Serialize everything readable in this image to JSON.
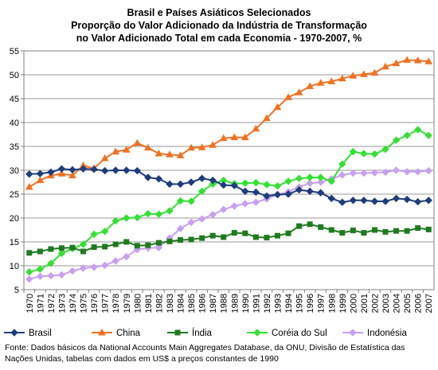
{
  "title_lines": [
    "Brasil e Países Asiáticos Selecionados",
    "Proporção do Valor Adicionado da Indústria de Transformação",
    "no Valor Adicionado Total em cada Economia - 1970-2007, %"
  ],
  "source_note": "Fonte: Dados básicos da National Accounts Main Aggregates Database, da ONU, Divisão de Estatística das Nações Unidas, tabelas com dados em US$ a preços constantes de 1990",
  "chart_data": {
    "type": "line",
    "title": "Brasil e Países Asiáticos Selecionados - Proporção do Valor Adicionado da Indústria de Transformação no Valor Adicionado Total em cada Economia - 1970-2007, %",
    "xlabel": "",
    "ylabel": "",
    "ylim": [
      5,
      55
    ],
    "yticks": [
      5,
      10,
      15,
      20,
      25,
      30,
      35,
      40,
      45,
      50,
      55
    ],
    "grid": true,
    "legend_position": "bottom",
    "categories": [
      "1970",
      "1971",
      "1972",
      "1973",
      "1974",
      "1975",
      "1976",
      "1977",
      "1978",
      "1979",
      "1980",
      "1981",
      "1982",
      "1983",
      "1984",
      "1985",
      "1986",
      "1987",
      "1988",
      "1989",
      "1990",
      "1991",
      "1992",
      "1993",
      "1994",
      "1995",
      "1996",
      "1997",
      "1998",
      "1999",
      "2000",
      "2001",
      "2002",
      "2003",
      "2004",
      "2005",
      "2006",
      "2007"
    ],
    "series": [
      {
        "name": "Brasil",
        "color": "#1f3d7a",
        "marker": "diamond",
        "values": [
          29.2,
          29.3,
          29.6,
          30.3,
          30.1,
          30.3,
          30.2,
          29.9,
          30.0,
          30.0,
          29.9,
          28.5,
          28.2,
          27.1,
          27.1,
          27.5,
          28.3,
          27.9,
          26.9,
          26.8,
          25.6,
          25.4,
          24.6,
          24.9,
          25.0,
          25.9,
          25.6,
          25.3,
          24.1,
          23.3,
          23.7,
          23.7,
          23.5,
          23.5,
          24.1,
          23.9,
          23.4,
          23.7
        ]
      },
      {
        "name": "China",
        "color": "#f07020",
        "marker": "triangle",
        "values": [
          26.5,
          27.9,
          28.9,
          29.3,
          28.9,
          31.0,
          30.4,
          32.5,
          33.9,
          34.3,
          35.7,
          34.7,
          33.5,
          33.3,
          33.1,
          34.7,
          34.8,
          35.3,
          36.7,
          36.9,
          36.9,
          38.7,
          40.9,
          43.2,
          45.3,
          46.3,
          47.6,
          48.3,
          48.6,
          49.2,
          49.8,
          50.1,
          50.4,
          51.7,
          52.4,
          53.1,
          53.0,
          52.8
        ]
      },
      {
        "name": "Índia",
        "color": "#1f7a1f",
        "marker": "square",
        "values": [
          12.7,
          13.0,
          13.5,
          13.7,
          13.8,
          13.0,
          13.9,
          14.0,
          14.5,
          15.0,
          14.2,
          14.3,
          14.8,
          15.1,
          15.4,
          15.5,
          15.8,
          16.3,
          16.0,
          16.9,
          16.8,
          16.0,
          15.9,
          16.3,
          16.8,
          18.3,
          18.7,
          18.1,
          17.5,
          16.9,
          17.4,
          16.9,
          17.5,
          17.1,
          17.3,
          17.3,
          17.9,
          17.6
        ]
      },
      {
        "name": "Coréia do Sul",
        "color": "#33e033",
        "marker": "diamond",
        "values": [
          8.7,
          9.3,
          10.5,
          12.6,
          13.6,
          14.5,
          16.6,
          17.2,
          19.4,
          20.0,
          20.1,
          20.9,
          20.8,
          21.5,
          23.6,
          23.5,
          25.6,
          27.1,
          27.9,
          27.2,
          27.3,
          27.4,
          27.0,
          26.7,
          27.7,
          28.3,
          28.5,
          28.5,
          27.7,
          31.3,
          33.9,
          33.5,
          33.4,
          34.4,
          36.3,
          37.3,
          38.5,
          37.3
        ]
      },
      {
        "name": "Indonésia",
        "color": "#c8a0f0",
        "marker": "diamond",
        "values": [
          7.2,
          7.8,
          7.9,
          8.1,
          8.9,
          9.5,
          9.7,
          10.1,
          11.0,
          11.9,
          13.4,
          13.7,
          13.8,
          15.8,
          17.8,
          19.1,
          19.8,
          20.7,
          21.8,
          22.5,
          23.0,
          23.3,
          24.0,
          24.9,
          25.5,
          26.5,
          27.3,
          27.5,
          28.2,
          29.0,
          29.4,
          29.4,
          29.5,
          29.6,
          30.0,
          29.7,
          29.7,
          29.9
        ]
      }
    ]
  }
}
